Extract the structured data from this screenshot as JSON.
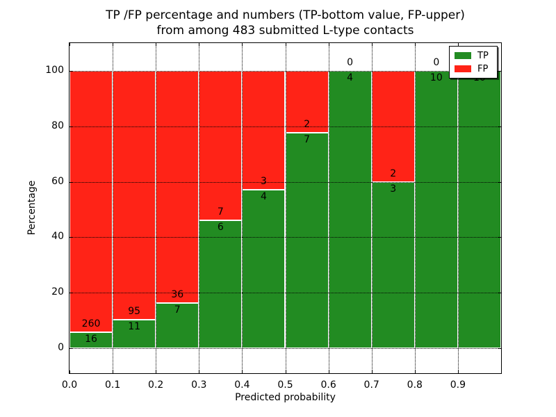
{
  "title": {
    "line1": "TP /FP percentage and numbers (TP-bottom value, FP-upper)",
    "line2": "from among 483 submitted L-type contacts"
  },
  "axes": {
    "xlabel": "Predicted probability",
    "ylabel": "Percentage"
  },
  "colors": {
    "tp_green": "#228b22",
    "fp_red": "#ff2317",
    "grid": "#000000",
    "background": "#ffffff"
  },
  "chart_data": {
    "type": "bar",
    "stacked": true,
    "normalized_to_percent": true,
    "title": "TP /FP percentage and numbers (TP-bottom value, FP-upper) from among 483 submitted L-type contacts",
    "xlabel": "Predicted probability",
    "ylabel": "Percentage",
    "total_contacts": 483,
    "categories": [
      "0.0-0.1",
      "0.1-0.2",
      "0.2-0.3",
      "0.3-0.4",
      "0.4-0.5",
      "0.5-0.6",
      "0.6-0.7",
      "0.7-0.8",
      "0.8-0.9",
      "0.9-1.0"
    ],
    "series": [
      {
        "name": "TP",
        "color": "#228b22",
        "counts": [
          16,
          11,
          7,
          6,
          4,
          7,
          4,
          3,
          10,
          10
        ]
      },
      {
        "name": "FP",
        "color": "#ff2317",
        "counts": [
          260,
          95,
          36,
          7,
          3,
          2,
          0,
          2,
          0,
          0
        ]
      }
    ],
    "tp_percent": [
      5.8,
      10.38,
      16.28,
      46.15,
      57.14,
      77.78,
      100.0,
      60.0,
      100.0,
      100.0
    ],
    "x_tick_values": [
      0.0,
      0.1,
      0.2,
      0.3,
      0.4,
      0.5,
      0.6,
      0.7,
      0.8,
      0.9
    ],
    "x_tick_labels": [
      "0.0",
      "0.1",
      "0.2",
      "0.3",
      "0.4",
      "0.5",
      "0.6",
      "0.7",
      "0.8",
      "0.9"
    ],
    "y_tick_values": [
      0,
      20,
      40,
      60,
      80,
      100
    ],
    "y_tick_labels": [
      "0",
      "20",
      "40",
      "60",
      "80",
      "100"
    ],
    "xlim": [
      0.0,
      1.0
    ],
    "ylim_display": [
      -9,
      110
    ],
    "grid": true,
    "legend": {
      "position": "upper right",
      "items": [
        {
          "label": "TP",
          "color": "#228b22"
        },
        {
          "label": "FP",
          "color": "#ff2317"
        }
      ]
    }
  }
}
